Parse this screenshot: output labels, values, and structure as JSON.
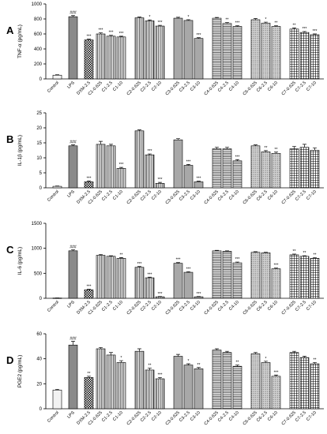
{
  "chart_data": [
    {
      "type": "bar",
      "panel_label": "A",
      "ylabel": "TNF-α (pg/mL)",
      "ylim": [
        0,
        1000
      ],
      "yticks": [
        0,
        200,
        400,
        600,
        800,
        1000
      ],
      "categories": [
        "Control",
        "LPS",
        "DXM-2.5",
        "C1-0.625",
        "C1-2.5",
        "C1-10",
        "C2-0.625",
        "C2-2.5",
        "C2-10",
        "C3-0.625",
        "C3-2.5",
        "C3-10",
        "C4-0.625",
        "C4-2.5",
        "C4-10",
        "C6-0.625",
        "C6-2.5",
        "C6-10",
        "C7-0.625",
        "C7-2.5",
        "C7-10"
      ],
      "values": [
        50,
        830,
        520,
        600,
        570,
        560,
        815,
        775,
        705,
        810,
        780,
        540,
        810,
        740,
        700,
        790,
        745,
        700,
        665,
        620,
        590
      ],
      "errors": [
        5,
        15,
        10,
        15,
        12,
        10,
        10,
        12,
        10,
        12,
        10,
        10,
        10,
        12,
        10,
        15,
        12,
        10,
        15,
        12,
        10
      ],
      "significance": [
        "",
        "###",
        "***",
        "***",
        "***",
        "***",
        "",
        "*",
        "***",
        "",
        "*",
        "***",
        "",
        "**",
        "***",
        "",
        "*",
        "**",
        "**",
        "***",
        "***"
      ]
    },
    {
      "type": "bar",
      "panel_label": "B",
      "ylabel": "IL-1β (pg/mL)",
      "ylim": [
        0,
        25
      ],
      "yticks": [
        0,
        5,
        10,
        15,
        20,
        25
      ],
      "categories": [
        "Control",
        "LPS",
        "DXM-2.5",
        "C1-0.625",
        "C1-2.5",
        "C1-10",
        "C2-0.625",
        "C2-2.5",
        "C2-10",
        "C3-0.625",
        "C3-2.5",
        "C3-10",
        "C4-0.625",
        "C4-2.5",
        "C4-10",
        "C6-0.625",
        "C6-2.5",
        "C6-10",
        "C7-0.625",
        "C7-2.5",
        "C7-10"
      ],
      "values": [
        0.5,
        14,
        2,
        14.5,
        14,
        6.5,
        19,
        11,
        1.5,
        16,
        7.5,
        2,
        13,
        13,
        9,
        14,
        12,
        11.5,
        13,
        13.5,
        12.5
      ],
      "errors": [
        0.1,
        0.3,
        0.3,
        1.0,
        0.5,
        0.3,
        0.3,
        0.3,
        0.3,
        0.4,
        0.3,
        0.2,
        0.5,
        0.5,
        0.4,
        0.3,
        0.4,
        0.4,
        0.8,
        1.0,
        0.8
      ],
      "significance": [
        "",
        "###",
        "***",
        "",
        "",
        "***",
        "",
        "***",
        "***",
        "",
        "***",
        "***",
        "",
        "",
        "***",
        "",
        "**",
        "**",
        "",
        "",
        ""
      ]
    },
    {
      "type": "bar",
      "panel_label": "C",
      "ylabel": "IL-6 (pg/mL)",
      "ylim": [
        0,
        1500
      ],
      "yticks": [
        0,
        500,
        1000,
        1500
      ],
      "categories": [
        "Control",
        "LPS",
        "DXM-2.5",
        "C1-0.625",
        "C1-2.5",
        "C1-10",
        "C2-0.625",
        "C2-2.5",
        "C2-10",
        "C3-0.625",
        "C3-2.5",
        "C3-10",
        "C4-0.625",
        "C4-2.5",
        "C4-10",
        "C6-0.625",
        "C6-2.5",
        "C6-10",
        "C7-0.625",
        "C7-2.5",
        "C7-10"
      ],
      "values": [
        5,
        950,
        170,
        860,
        840,
        800,
        620,
        410,
        30,
        700,
        520,
        30,
        950,
        940,
        710,
        920,
        910,
        590,
        870,
        840,
        800
      ],
      "errors": [
        2,
        20,
        10,
        15,
        12,
        15,
        15,
        12,
        5,
        15,
        12,
        5,
        10,
        10,
        15,
        12,
        10,
        15,
        15,
        12,
        12
      ],
      "significance": [
        "",
        "###",
        "***",
        "",
        "",
        "**",
        "***",
        "***",
        "***",
        "***",
        "***",
        "***",
        "",
        "",
        "***",
        "",
        "",
        "***",
        "**",
        "**",
        "**"
      ]
    },
    {
      "type": "bar",
      "panel_label": "D",
      "ylabel": "PGE2 (pg/mL)",
      "ylim": [
        0,
        60
      ],
      "yticks": [
        0,
        20,
        40,
        60
      ],
      "categories": [
        "Control",
        "LPS",
        "DXM-2.5",
        "C1-0.625",
        "C1-2.5",
        "C1-10",
        "C2-0.625",
        "C2-2.5",
        "C2-10",
        "C3-0.625",
        "C3-2.5",
        "C3-10",
        "C4-0.625",
        "C4-2.5",
        "C4-10",
        "C6-0.625",
        "C6-2.5",
        "C6-10",
        "C7-0.625",
        "C7-2.5",
        "C7-10"
      ],
      "values": [
        15,
        51,
        25,
        48,
        43,
        37,
        46,
        31,
        24,
        42,
        35,
        32,
        47,
        45,
        34,
        44,
        37,
        26,
        45,
        41,
        36
      ],
      "errors": [
        0.5,
        3,
        1,
        1,
        2,
        1.5,
        2,
        1.5,
        1,
        1.5,
        1,
        1,
        1,
        1,
        1,
        1,
        1,
        1,
        1,
        1,
        1
      ],
      "significance": [
        "",
        "###",
        "**",
        "",
        "",
        "*",
        "",
        "**",
        "***",
        "",
        "*",
        "**",
        "",
        "",
        "**",
        "",
        "*",
        "***",
        "",
        "",
        "**"
      ]
    }
  ]
}
